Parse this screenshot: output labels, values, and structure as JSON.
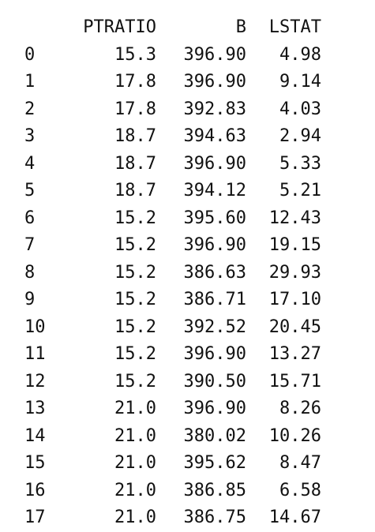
{
  "dataframe": {
    "columns": [
      "PTRATIO",
      "B",
      "LSTAT"
    ],
    "rows": [
      {
        "index": "0",
        "cells": [
          "15.3",
          "396.90",
          "4.98"
        ]
      },
      {
        "index": "1",
        "cells": [
          "17.8",
          "396.90",
          "9.14"
        ]
      },
      {
        "index": "2",
        "cells": [
          "17.8",
          "392.83",
          "4.03"
        ]
      },
      {
        "index": "3",
        "cells": [
          "18.7",
          "394.63",
          "2.94"
        ]
      },
      {
        "index": "4",
        "cells": [
          "18.7",
          "396.90",
          "5.33"
        ]
      },
      {
        "index": "5",
        "cells": [
          "18.7",
          "394.12",
          "5.21"
        ]
      },
      {
        "index": "6",
        "cells": [
          "15.2",
          "395.60",
          "12.43"
        ]
      },
      {
        "index": "7",
        "cells": [
          "15.2",
          "396.90",
          "19.15"
        ]
      },
      {
        "index": "8",
        "cells": [
          "15.2",
          "386.63",
          "29.93"
        ]
      },
      {
        "index": "9",
        "cells": [
          "15.2",
          "386.71",
          "17.10"
        ]
      },
      {
        "index": "10",
        "cells": [
          "15.2",
          "392.52",
          "20.45"
        ]
      },
      {
        "index": "11",
        "cells": [
          "15.2",
          "396.90",
          "13.27"
        ]
      },
      {
        "index": "12",
        "cells": [
          "15.2",
          "390.50",
          "15.71"
        ]
      },
      {
        "index": "13",
        "cells": [
          "21.0",
          "396.90",
          "8.26"
        ]
      },
      {
        "index": "14",
        "cells": [
          "21.0",
          "380.02",
          "10.26"
        ]
      },
      {
        "index": "15",
        "cells": [
          "21.0",
          "395.62",
          "8.47"
        ]
      },
      {
        "index": "16",
        "cells": [
          "21.0",
          "386.85",
          "6.58"
        ]
      },
      {
        "index": "17",
        "cells": [
          "21.0",
          "386.75",
          "14.67"
        ]
      }
    ]
  }
}
